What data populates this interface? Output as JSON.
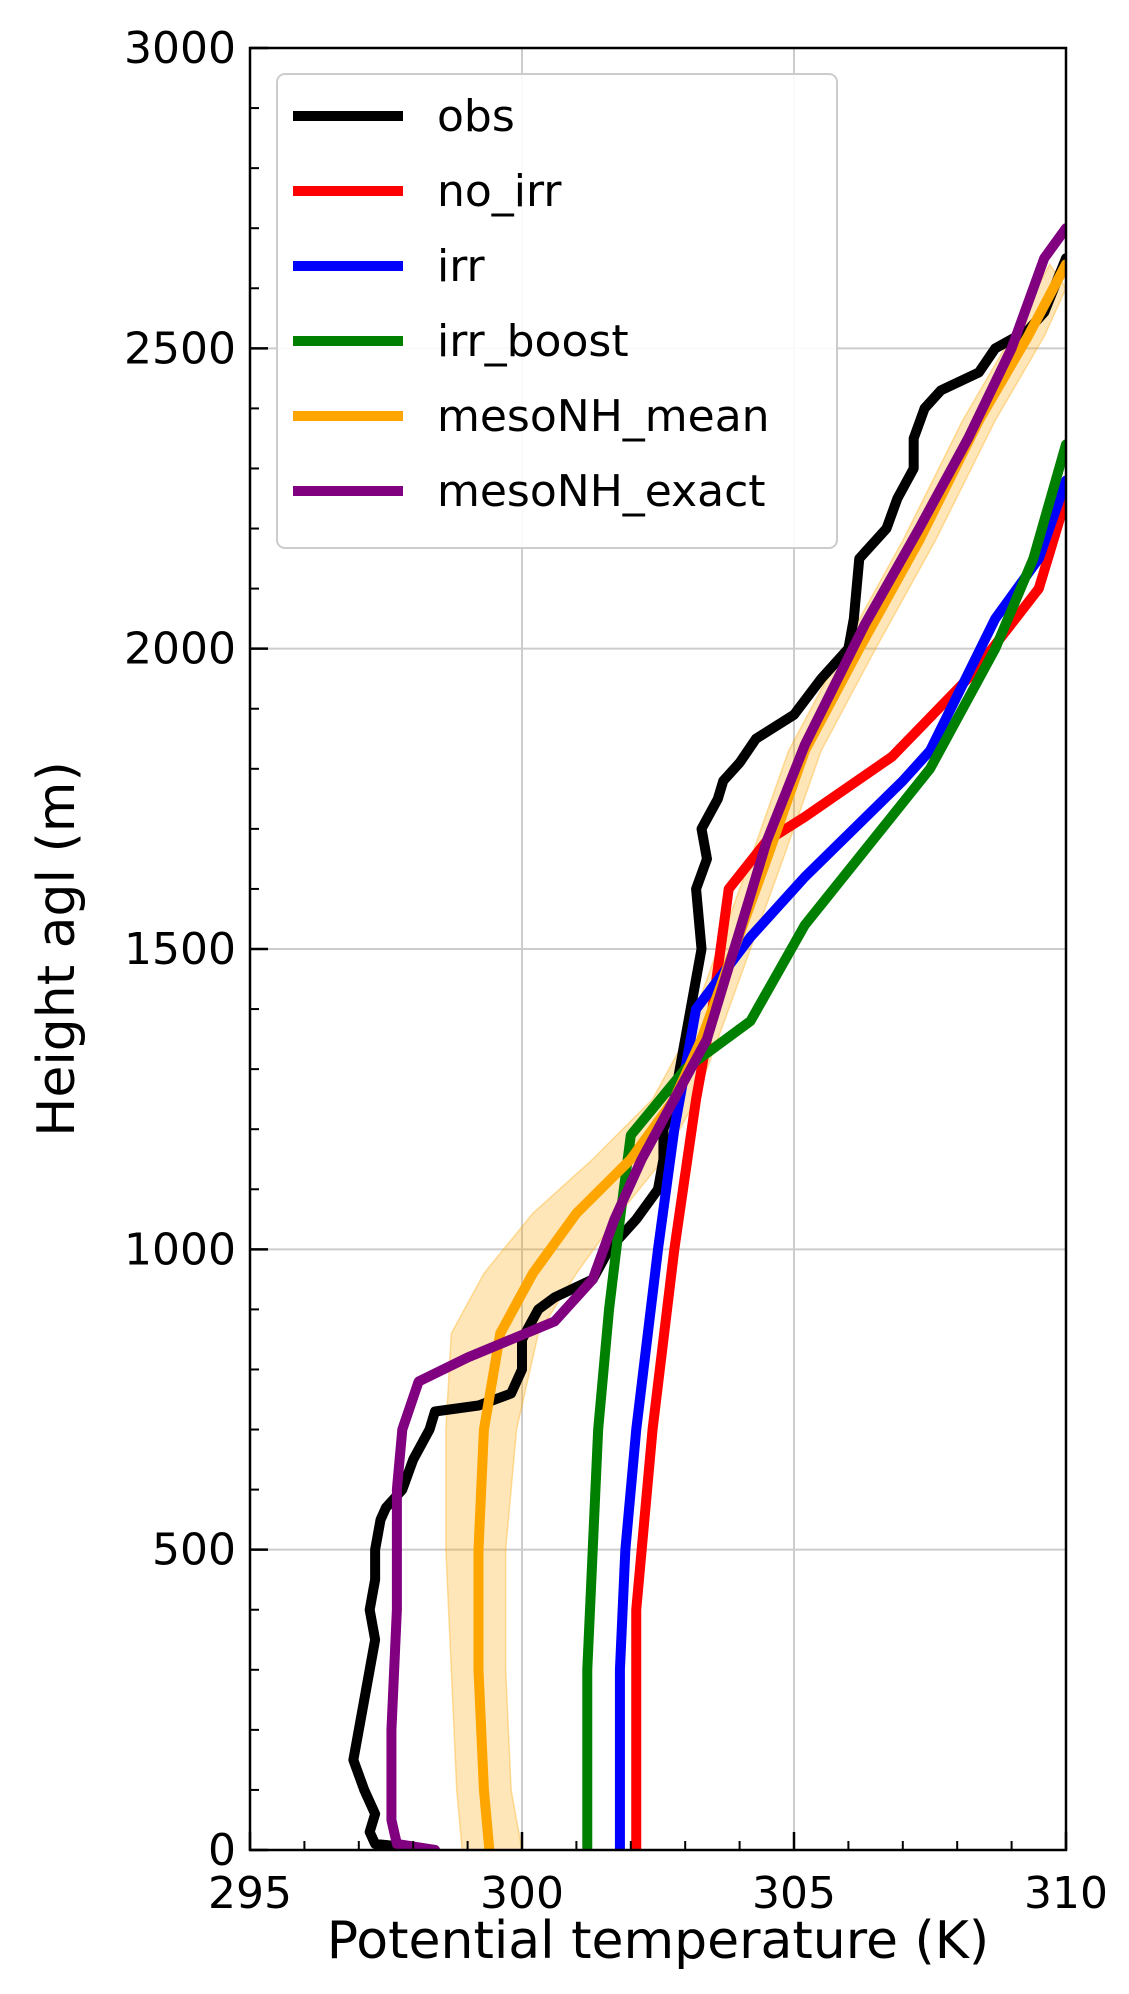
{
  "chart_data": {
    "type": "line",
    "xlabel": "Potential temperature (K)",
    "ylabel": "Height agl (m)",
    "xlim": [
      295,
      310
    ],
    "ylim": [
      0,
      3000
    ],
    "xticks": [
      "295",
      "300",
      "305",
      "310"
    ],
    "yticks": [
      "0",
      "500",
      "1000",
      "1500",
      "2000",
      "2500",
      "3000"
    ],
    "grid": true,
    "legend_position": "top-left",
    "series": [
      {
        "name": "obs",
        "color": "#000000",
        "points": [
          [
            298.4,
            0
          ],
          [
            297.3,
            10
          ],
          [
            297.2,
            30
          ],
          [
            297.3,
            60
          ],
          [
            297.1,
            100
          ],
          [
            296.9,
            150
          ],
          [
            297.0,
            200
          ],
          [
            297.1,
            250
          ],
          [
            297.2,
            300
          ],
          [
            297.3,
            350
          ],
          [
            297.2,
            400
          ],
          [
            297.3,
            450
          ],
          [
            297.3,
            500
          ],
          [
            297.4,
            550
          ],
          [
            297.5,
            570
          ],
          [
            297.8,
            600
          ],
          [
            298.0,
            650
          ],
          [
            298.3,
            700
          ],
          [
            298.4,
            730
          ],
          [
            299.2,
            740
          ],
          [
            299.8,
            760
          ],
          [
            300.0,
            800
          ],
          [
            300.0,
            850
          ],
          [
            300.3,
            900
          ],
          [
            300.6,
            920
          ],
          [
            301.3,
            950
          ],
          [
            301.6,
            1000
          ],
          [
            302.1,
            1050
          ],
          [
            302.5,
            1100
          ],
          [
            302.6,
            1150
          ],
          [
            302.6,
            1200
          ],
          [
            302.8,
            1250
          ],
          [
            302.9,
            1300
          ],
          [
            303.0,
            1350
          ],
          [
            303.1,
            1400
          ],
          [
            303.3,
            1500
          ],
          [
            303.2,
            1600
          ],
          [
            303.4,
            1650
          ],
          [
            303.3,
            1700
          ],
          [
            303.6,
            1750
          ],
          [
            303.7,
            1780
          ],
          [
            304.0,
            1810
          ],
          [
            304.3,
            1850
          ],
          [
            305.0,
            1890
          ],
          [
            305.5,
            1950
          ],
          [
            306.0,
            2000
          ],
          [
            306.1,
            2050
          ],
          [
            306.2,
            2150
          ],
          [
            306.7,
            2200
          ],
          [
            306.9,
            2250
          ],
          [
            307.2,
            2300
          ],
          [
            307.2,
            2350
          ],
          [
            307.4,
            2400
          ],
          [
            307.7,
            2430
          ],
          [
            308.4,
            2460
          ],
          [
            308.7,
            2500
          ],
          [
            309.3,
            2530
          ],
          [
            309.6,
            2560
          ],
          [
            310.0,
            2650
          ]
        ]
      },
      {
        "name": "no_irr",
        "color": "#ff0000",
        "points": [
          [
            302.1,
            0
          ],
          [
            302.1,
            100
          ],
          [
            302.1,
            300
          ],
          [
            302.1,
            400
          ],
          [
            302.2,
            500
          ],
          [
            302.4,
            700
          ],
          [
            302.8,
            1000
          ],
          [
            303.2,
            1250
          ],
          [
            303.5,
            1400
          ],
          [
            303.8,
            1600
          ],
          [
            304.5,
            1680
          ],
          [
            305.2,
            1720
          ],
          [
            306.8,
            1820
          ],
          [
            308.3,
            1960
          ],
          [
            309.5,
            2100
          ],
          [
            310.0,
            2250
          ]
        ]
      },
      {
        "name": "irr",
        "color": "#0000ff",
        "points": [
          [
            301.8,
            0
          ],
          [
            301.8,
            100
          ],
          [
            301.8,
            300
          ],
          [
            301.9,
            500
          ],
          [
            302.1,
            700
          ],
          [
            302.5,
            1000
          ],
          [
            302.8,
            1200
          ],
          [
            303.2,
            1400
          ],
          [
            304.2,
            1520
          ],
          [
            305.2,
            1620
          ],
          [
            307.0,
            1780
          ],
          [
            307.5,
            1830
          ],
          [
            308.7,
            2050
          ],
          [
            309.5,
            2150
          ],
          [
            310.0,
            2280
          ]
        ]
      },
      {
        "name": "irr_boost",
        "color": "#008000",
        "points": [
          [
            301.2,
            0
          ],
          [
            301.2,
            100
          ],
          [
            301.2,
            300
          ],
          [
            301.3,
            500
          ],
          [
            301.4,
            700
          ],
          [
            301.6,
            900
          ],
          [
            301.8,
            1050
          ],
          [
            302.0,
            1190
          ],
          [
            303.0,
            1300
          ],
          [
            304.2,
            1380
          ],
          [
            305.2,
            1540
          ],
          [
            307.5,
            1800
          ],
          [
            308.7,
            2000
          ],
          [
            309.4,
            2150
          ],
          [
            310.0,
            2340
          ]
        ]
      },
      {
        "name": "mesoNH_mean",
        "color": "#ffa500",
        "points": [
          [
            299.4,
            0
          ],
          [
            299.3,
            100
          ],
          [
            299.2,
            300
          ],
          [
            299.2,
            500
          ],
          [
            299.3,
            700
          ],
          [
            299.6,
            860
          ],
          [
            300.2,
            960
          ],
          [
            301.0,
            1060
          ],
          [
            302.0,
            1150
          ],
          [
            302.8,
            1250
          ],
          [
            303.3,
            1350
          ],
          [
            303.9,
            1500
          ],
          [
            304.5,
            1650
          ],
          [
            305.2,
            1830
          ],
          [
            306.2,
            2000
          ],
          [
            307.3,
            2180
          ],
          [
            308.4,
            2380
          ],
          [
            309.3,
            2520
          ],
          [
            310.0,
            2640
          ]
        ],
        "band_lower": [
          [
            298.9,
            0
          ],
          [
            298.8,
            100
          ],
          [
            298.7,
            300
          ],
          [
            298.6,
            500
          ],
          [
            298.6,
            700
          ],
          [
            298.7,
            860
          ],
          [
            299.3,
            960
          ],
          [
            300.2,
            1060
          ],
          [
            301.3,
            1150
          ],
          [
            302.4,
            1250
          ],
          [
            303.0,
            1350
          ],
          [
            303.6,
            1500
          ],
          [
            304.2,
            1650
          ],
          [
            304.9,
            1830
          ],
          [
            305.9,
            2000
          ],
          [
            307.0,
            2180
          ],
          [
            308.1,
            2380
          ],
          [
            309.0,
            2520
          ],
          [
            309.7,
            2640
          ]
        ],
        "band_upper": [
          [
            300.0,
            0
          ],
          [
            299.8,
            100
          ],
          [
            299.7,
            300
          ],
          [
            299.7,
            500
          ],
          [
            299.9,
            700
          ],
          [
            300.3,
            860
          ],
          [
            301.0,
            960
          ],
          [
            301.8,
            1060
          ],
          [
            302.6,
            1150
          ],
          [
            303.2,
            1250
          ],
          [
            303.6,
            1350
          ],
          [
            304.2,
            1500
          ],
          [
            304.8,
            1650
          ],
          [
            305.5,
            1830
          ],
          [
            306.5,
            2000
          ],
          [
            307.6,
            2180
          ],
          [
            308.7,
            2380
          ],
          [
            309.6,
            2520
          ],
          [
            310.0,
            2600
          ]
        ]
      },
      {
        "name": "mesoNH_exact",
        "color": "#800080",
        "points": [
          [
            298.4,
            0
          ],
          [
            297.7,
            10
          ],
          [
            297.6,
            50
          ],
          [
            297.6,
            200
          ],
          [
            297.7,
            400
          ],
          [
            297.7,
            600
          ],
          [
            297.8,
            700
          ],
          [
            298.1,
            780
          ],
          [
            299.0,
            820
          ],
          [
            300.6,
            880
          ],
          [
            301.3,
            950
          ],
          [
            301.7,
            1050
          ],
          [
            302.2,
            1150
          ],
          [
            302.8,
            1250
          ],
          [
            303.4,
            1350
          ],
          [
            303.9,
            1500
          ],
          [
            304.5,
            1680
          ],
          [
            305.2,
            1840
          ],
          [
            306.3,
            2040
          ],
          [
            307.3,
            2200
          ],
          [
            308.2,
            2350
          ],
          [
            309.0,
            2500
          ],
          [
            309.6,
            2650
          ],
          [
            310.0,
            2700
          ]
        ]
      }
    ]
  }
}
